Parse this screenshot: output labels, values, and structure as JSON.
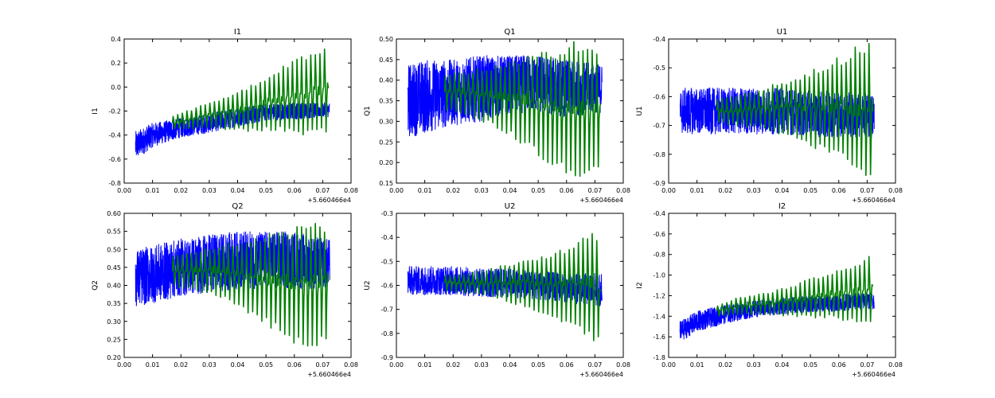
{
  "colors": {
    "blue": "#0000ff",
    "green": "#008000"
  },
  "chart_data": [
    {
      "type": "line",
      "title": "I1",
      "ylabel": "I1",
      "xlabel": "",
      "xlim": [
        0.0,
        0.08
      ],
      "ylim": [
        -0.8,
        0.4
      ],
      "xticks": [
        "0.00",
        "0.01",
        "0.02",
        "0.03",
        "0.04",
        "0.05",
        "0.06",
        "0.07",
        "0.08"
      ],
      "yticks": [
        "-0.8",
        "-0.6",
        "-0.4",
        "-0.2",
        "0.0",
        "0.2",
        "0.4"
      ],
      "x_offset": "+5.660466e4",
      "series": [
        {
          "color": "blue",
          "x": [
            0.004,
            0.01,
            0.02,
            0.03,
            0.04,
            0.05,
            0.06,
            0.07,
            0.0725
          ],
          "center": [
            -0.49,
            -0.4,
            -0.34,
            -0.3,
            -0.25,
            -0.21,
            -0.2,
            -0.19,
            -0.19
          ],
          "spread": [
            0.12,
            0.1,
            0.08,
            0.08,
            0.08,
            0.07,
            0.07,
            0.06,
            0.06
          ]
        },
        {
          "color": "green",
          "x": [
            0.017,
            0.025,
            0.035,
            0.045,
            0.055,
            0.062,
            0.067,
            0.072
          ],
          "center": [
            -0.3,
            -0.26,
            -0.22,
            -0.18,
            -0.1,
            -0.08,
            -0.05,
            -0.02
          ],
          "spread": [
            0.05,
            0.08,
            0.12,
            0.18,
            0.24,
            0.3,
            0.32,
            0.34
          ]
        }
      ]
    },
    {
      "type": "line",
      "title": "Q1",
      "ylabel": "Q1",
      "xlabel": "",
      "xlim": [
        0.0,
        0.08
      ],
      "ylim": [
        0.15,
        0.5
      ],
      "xticks": [
        "0.00",
        "0.01",
        "0.02",
        "0.03",
        "0.04",
        "0.05",
        "0.06",
        "0.07",
        "0.08"
      ],
      "yticks": [
        "0.15",
        "0.20",
        "0.25",
        "0.30",
        "0.35",
        "0.40",
        "0.45",
        "0.50"
      ],
      "x_offset": "+5.660466e4",
      "series": [
        {
          "color": "blue",
          "x": [
            0.004,
            0.01,
            0.02,
            0.03,
            0.04,
            0.05,
            0.06,
            0.07,
            0.0725
          ],
          "center": [
            0.35,
            0.36,
            0.37,
            0.38,
            0.39,
            0.39,
            0.38,
            0.38,
            0.38
          ],
          "spread": [
            0.09,
            0.09,
            0.08,
            0.08,
            0.07,
            0.07,
            0.07,
            0.06,
            0.06
          ]
        },
        {
          "color": "green",
          "x": [
            0.017,
            0.025,
            0.035,
            0.045,
            0.055,
            0.062,
            0.067,
            0.072
          ],
          "center": [
            0.37,
            0.37,
            0.36,
            0.35,
            0.33,
            0.33,
            0.33,
            0.33
          ],
          "spread": [
            0.04,
            0.05,
            0.07,
            0.1,
            0.13,
            0.15,
            0.15,
            0.14
          ]
        }
      ]
    },
    {
      "type": "line",
      "title": "U1",
      "ylabel": "U1",
      "xlabel": "",
      "xlim": [
        0.0,
        0.08
      ],
      "ylim": [
        -0.9,
        -0.4
      ],
      "xticks": [
        "0.00",
        "0.01",
        "0.02",
        "0.03",
        "0.04",
        "0.05",
        "0.06",
        "0.07",
        "0.08"
      ],
      "yticks": [
        "-0.9",
        "-0.8",
        "-0.7",
        "-0.6",
        "-0.5",
        "-0.4"
      ],
      "x_offset": "+5.660466e4",
      "series": [
        {
          "color": "blue",
          "x": [
            0.004,
            0.01,
            0.02,
            0.03,
            0.04,
            0.05,
            0.06,
            0.07,
            0.0725
          ],
          "center": [
            -0.65,
            -0.65,
            -0.65,
            -0.65,
            -0.65,
            -0.66,
            -0.66,
            -0.67,
            -0.67
          ],
          "spread": [
            0.08,
            0.08,
            0.08,
            0.08,
            0.08,
            0.08,
            0.08,
            0.08,
            0.08
          ]
        },
        {
          "color": "green",
          "x": [
            0.017,
            0.025,
            0.035,
            0.045,
            0.055,
            0.062,
            0.067,
            0.072
          ],
          "center": [
            -0.65,
            -0.65,
            -0.64,
            -0.64,
            -0.64,
            -0.64,
            -0.65,
            -0.65
          ],
          "spread": [
            0.04,
            0.05,
            0.07,
            0.1,
            0.14,
            0.17,
            0.21,
            0.22
          ]
        }
      ]
    },
    {
      "type": "line",
      "title": "Q2",
      "ylabel": "Q2",
      "xlabel": "",
      "xlim": [
        0.0,
        0.08
      ],
      "ylim": [
        0.2,
        0.6
      ],
      "xticks": [
        "0.00",
        "0.01",
        "0.02",
        "0.03",
        "0.04",
        "0.05",
        "0.06",
        "0.07",
        "0.08"
      ],
      "yticks": [
        "0.20",
        "0.25",
        "0.30",
        "0.35",
        "0.40",
        "0.45",
        "0.50",
        "0.55",
        "0.60"
      ],
      "x_offset": "+5.660466e4",
      "series": [
        {
          "color": "blue",
          "x": [
            0.004,
            0.01,
            0.02,
            0.03,
            0.04,
            0.05,
            0.06,
            0.07,
            0.0725
          ],
          "center": [
            0.42,
            0.43,
            0.45,
            0.46,
            0.47,
            0.47,
            0.47,
            0.46,
            0.46
          ],
          "spread": [
            0.08,
            0.08,
            0.08,
            0.08,
            0.08,
            0.08,
            0.08,
            0.07,
            0.07
          ]
        },
        {
          "color": "green",
          "x": [
            0.017,
            0.025,
            0.035,
            0.045,
            0.055,
            0.062,
            0.067,
            0.072
          ],
          "center": [
            0.44,
            0.44,
            0.44,
            0.42,
            0.41,
            0.4,
            0.4,
            0.41
          ],
          "spread": [
            0.04,
            0.05,
            0.07,
            0.1,
            0.13,
            0.16,
            0.16,
            0.15
          ]
        }
      ]
    },
    {
      "type": "line",
      "title": "U2",
      "ylabel": "U2",
      "xlabel": "",
      "xlim": [
        0.0,
        0.08
      ],
      "ylim": [
        -0.9,
        -0.3
      ],
      "xticks": [
        "0.00",
        "0.01",
        "0.02",
        "0.03",
        "0.04",
        "0.05",
        "0.06",
        "0.07",
        "0.08"
      ],
      "yticks": [
        "-0.9",
        "-0.8",
        "-0.7",
        "-0.6",
        "-0.5",
        "-0.4",
        "-0.3"
      ],
      "x_offset": "+5.660466e4",
      "series": [
        {
          "color": "blue",
          "x": [
            0.004,
            0.01,
            0.02,
            0.03,
            0.04,
            0.05,
            0.06,
            0.07,
            0.0725
          ],
          "center": [
            -0.58,
            -0.58,
            -0.58,
            -0.59,
            -0.59,
            -0.6,
            -0.61,
            -0.62,
            -0.62
          ],
          "spread": [
            0.06,
            0.06,
            0.06,
            0.06,
            0.06,
            0.06,
            0.06,
            0.07,
            0.07
          ]
        },
        {
          "color": "green",
          "x": [
            0.017,
            0.025,
            0.035,
            0.045,
            0.055,
            0.062,
            0.067,
            0.072
          ],
          "center": [
            -0.59,
            -0.59,
            -0.59,
            -0.59,
            -0.6,
            -0.6,
            -0.6,
            -0.62
          ],
          "spread": [
            0.03,
            0.04,
            0.06,
            0.09,
            0.12,
            0.16,
            0.2,
            0.21
          ]
        }
      ]
    },
    {
      "type": "line",
      "title": "I2",
      "ylabel": "I2",
      "xlabel": "",
      "xlim": [
        0.0,
        0.08
      ],
      "ylim": [
        -1.8,
        -0.4
      ],
      "xticks": [
        "0.00",
        "0.01",
        "0.02",
        "0.03",
        "0.04",
        "0.05",
        "0.06",
        "0.07",
        "0.08"
      ],
      "yticks": [
        "-1.8",
        "-1.6",
        "-1.4",
        "-1.2",
        "-1.0",
        "-0.8",
        "-0.6",
        "-0.4"
      ],
      "x_offset": "+5.660466e4",
      "series": [
        {
          "color": "blue",
          "x": [
            0.004,
            0.01,
            0.02,
            0.03,
            0.04,
            0.05,
            0.06,
            0.07,
            0.0725
          ],
          "center": [
            -1.55,
            -1.45,
            -1.38,
            -1.33,
            -1.3,
            -1.28,
            -1.27,
            -1.25,
            -1.25
          ],
          "spread": [
            0.1,
            0.1,
            0.09,
            0.08,
            0.08,
            0.08,
            0.08,
            0.08,
            0.08
          ]
        },
        {
          "color": "green",
          "x": [
            0.017,
            0.025,
            0.035,
            0.045,
            0.055,
            0.062,
            0.067,
            0.072
          ],
          "center": [
            -1.35,
            -1.3,
            -1.28,
            -1.25,
            -1.2,
            -1.18,
            -1.17,
            -1.12
          ],
          "spread": [
            0.05,
            0.08,
            0.1,
            0.15,
            0.2,
            0.24,
            0.26,
            0.3
          ]
        }
      ]
    }
  ]
}
